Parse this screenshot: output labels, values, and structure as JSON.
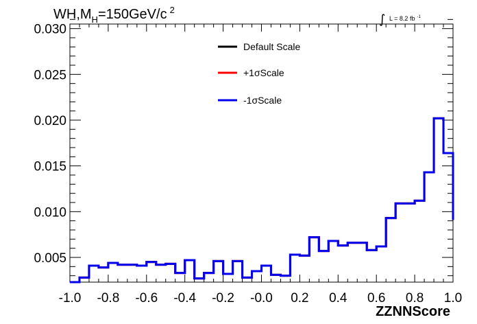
{
  "chart_data": {
    "type": "line",
    "title_main": "WH,M",
    "title_sub": "H",
    "title_rest": "=150GeV/c",
    "title_sup": "2",
    "lumi_prefix": "L = 8.2 fb",
    "lumi_sup": "-1",
    "xlabel": "ZZNNScore",
    "xlim": [
      -1.0,
      1.0
    ],
    "ylim": [
      0.0023,
      0.0305
    ],
    "x_ticks": [
      -1.0,
      -0.8,
      -0.6,
      -0.4,
      -0.2,
      0.0,
      0.2,
      0.4,
      0.6,
      0.8,
      1.0
    ],
    "x_tick_labels": [
      "-1.0",
      "-0.8",
      "-0.6",
      "-0.4",
      "-0.2",
      "-0.0",
      "0.2",
      "0.4",
      "0.6",
      "0.8",
      "1.0"
    ],
    "y_ticks": [
      0.005,
      0.01,
      0.015,
      0.02,
      0.025,
      0.03
    ],
    "y_tick_labels": [
      "0.005",
      "0.010",
      "0.015",
      "0.020",
      "0.025",
      "0.030"
    ],
    "bin_edges": [
      -1.0,
      -0.95,
      -0.9,
      -0.85,
      -0.8,
      -0.75,
      -0.7,
      -0.65,
      -0.6,
      -0.55,
      -0.5,
      -0.45,
      -0.4,
      -0.35,
      -0.3,
      -0.25,
      -0.2,
      -0.15,
      -0.1,
      -0.05,
      0.0,
      0.05,
      0.1,
      0.15,
      0.2,
      0.25,
      0.3,
      0.35,
      0.4,
      0.45,
      0.5,
      0.55,
      0.6,
      0.65,
      0.7,
      0.75,
      0.8,
      0.85,
      0.9,
      0.95,
      1.0
    ],
    "series": [
      {
        "name": "Default Scale",
        "color": "#000000",
        "values": [
          0.0023,
          0.0028,
          0.0041,
          0.0039,
          0.0044,
          0.0042,
          0.0042,
          0.0041,
          0.0045,
          0.0042,
          0.0043,
          0.0033,
          0.0047,
          0.0027,
          0.0033,
          0.0046,
          0.0032,
          0.0046,
          0.0028,
          0.0035,
          0.0041,
          0.0031,
          0.003,
          0.0053,
          0.0052,
          0.0072,
          0.0057,
          0.0068,
          0.0063,
          0.0066,
          0.0066,
          0.0058,
          0.0062,
          0.0093,
          0.0109,
          0.0109,
          0.0112,
          0.0143,
          0.0202,
          0.0164,
          0.0091
        ]
      },
      {
        "name": "+1σScale",
        "color": "#ff0000",
        "values": [
          0.0023,
          0.0028,
          0.0041,
          0.0039,
          0.0044,
          0.0042,
          0.0042,
          0.0041,
          0.0045,
          0.0042,
          0.0043,
          0.0033,
          0.0047,
          0.0027,
          0.0033,
          0.0046,
          0.0032,
          0.0046,
          0.0028,
          0.0035,
          0.0041,
          0.0031,
          0.003,
          0.0053,
          0.0052,
          0.0072,
          0.0057,
          0.0068,
          0.0063,
          0.0066,
          0.0066,
          0.0058,
          0.0062,
          0.0093,
          0.0109,
          0.0109,
          0.0112,
          0.0143,
          0.0202,
          0.0164,
          0.0091
        ]
      },
      {
        "name": "-1σScale",
        "color": "#0000ee",
        "values": [
          0.0023,
          0.0028,
          0.0041,
          0.0039,
          0.0044,
          0.0042,
          0.0042,
          0.0041,
          0.0045,
          0.0042,
          0.0043,
          0.0033,
          0.0047,
          0.0027,
          0.0033,
          0.0046,
          0.0032,
          0.0046,
          0.0028,
          0.0035,
          0.0041,
          0.0031,
          0.003,
          0.0053,
          0.0052,
          0.0072,
          0.0057,
          0.0068,
          0.0063,
          0.0066,
          0.0066,
          0.0058,
          0.0062,
          0.0093,
          0.0109,
          0.0109,
          0.0112,
          0.0143,
          0.0202,
          0.0164,
          0.0091
        ]
      }
    ],
    "legend_position": "top-center",
    "grid": false
  }
}
